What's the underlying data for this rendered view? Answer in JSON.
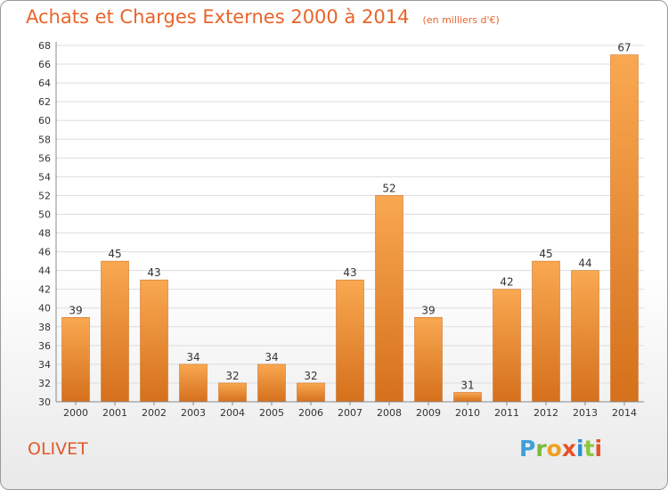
{
  "header": {
    "title": "Achats et Charges Externes 2000 à 2014",
    "subtitle": "(en milliers d'€)"
  },
  "footer": {
    "place": "OLIVET",
    "logo_text": "Proxiti",
    "logo_letters": [
      "P",
      "r",
      "o",
      "x",
      "i",
      "t",
      "i"
    ]
  },
  "colors": {
    "title": "#e8642a",
    "bar_light": "#f7a34e",
    "bar_dark": "#d4701a",
    "grid": "#dddddd",
    "axis": "#888888",
    "text": "#333333"
  },
  "chart_data": {
    "type": "bar",
    "title": "Achats et Charges Externes 2000 à 2014",
    "subtitle": "(en milliers d'€)",
    "xlabel": "",
    "ylabel": "",
    "categories": [
      "2000",
      "2001",
      "2002",
      "2003",
      "2004",
      "2005",
      "2006",
      "2007",
      "2008",
      "2009",
      "2010",
      "2011",
      "2012",
      "2013",
      "2014"
    ],
    "values": [
      39,
      45,
      43,
      34,
      32,
      34,
      32,
      43,
      52,
      39,
      31,
      42,
      45,
      44,
      67
    ],
    "ylim": [
      30,
      68
    ],
    "yticks": [
      30,
      32,
      34,
      36,
      38,
      40,
      42,
      44,
      46,
      48,
      50,
      52,
      54,
      56,
      58,
      60,
      62,
      64,
      66,
      68
    ],
    "grid": true,
    "legend": "none"
  }
}
